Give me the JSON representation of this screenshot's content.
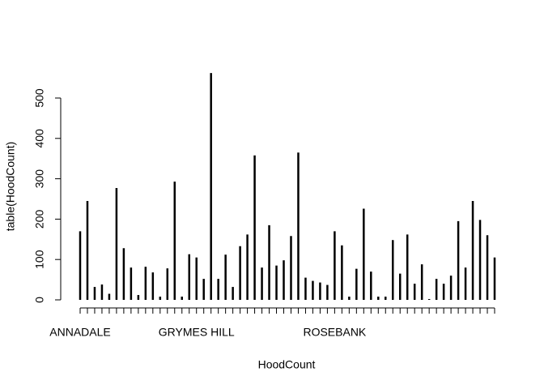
{
  "chart_data": {
    "type": "bar",
    "xlabel": "HoodCount",
    "ylabel": "table(HoodCount)",
    "categories": [
      "ANNADALE",
      null,
      null,
      null,
      null,
      null,
      null,
      null,
      null,
      null,
      null,
      null,
      null,
      null,
      null,
      null,
      "GRYMES HILL",
      null,
      null,
      null,
      null,
      null,
      null,
      null,
      null,
      null,
      null,
      null,
      null,
      null,
      null,
      null,
      null,
      null,
      null,
      "ROSEBANK",
      null,
      null,
      null,
      null,
      null,
      null,
      null,
      null,
      null,
      null,
      null,
      null,
      null,
      null,
      null,
      null,
      null,
      null,
      null,
      null,
      null,
      null
    ],
    "values": [
      170,
      245,
      32,
      38,
      15,
      277,
      128,
      80,
      12,
      82,
      68,
      8,
      78,
      293,
      8,
      113,
      105,
      52,
      562,
      52,
      112,
      32,
      133,
      162,
      358,
      80,
      185,
      85,
      98,
      158,
      365,
      55,
      47,
      43,
      37,
      170,
      135,
      8,
      77,
      226,
      70,
      8,
      8,
      148,
      65,
      162,
      40,
      88,
      2,
      52,
      40,
      60,
      195,
      80,
      245,
      198,
      160,
      105
    ],
    "color": "#000000",
    "ylim": [
      0,
      565
    ],
    "yticks": [
      0,
      100,
      200,
      300,
      400,
      500
    ]
  }
}
